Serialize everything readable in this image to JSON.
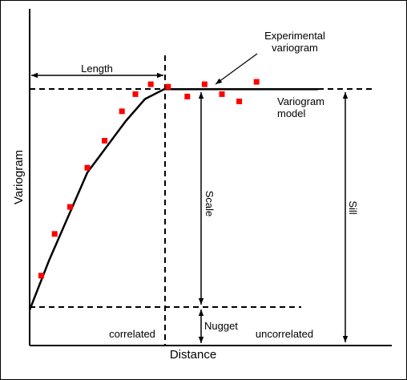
{
  "labels": {
    "length": "Length",
    "experimental": [
      "Experimental",
      "variogram"
    ],
    "model": [
      "Variogram",
      "model"
    ],
    "scale": "Scale",
    "sill": "Sill",
    "nugget": "Nugget",
    "correlated": "correlated",
    "uncorrelated": "uncorrelated",
    "xlabel": "Distance",
    "ylabel": "Variogram"
  },
  "colors": {
    "points": "#ff0000",
    "lines": "#000000"
  },
  "chart_data": {
    "type": "scatter",
    "x": [
      0.6,
      1.3,
      2.1,
      3.0,
      3.9,
      4.8,
      5.5,
      6.3,
      7.2,
      8.2,
      9.1,
      10.0,
      10.9,
      11.8
    ],
    "y": [
      0.2,
      0.37,
      0.48,
      0.64,
      0.75,
      0.87,
      0.94,
      0.98,
      0.97,
      0.93,
      0.98,
      0.94,
      0.91,
      0.99
    ],
    "model": [
      [
        0,
        0.06
      ],
      [
        1,
        0.26
      ],
      [
        3,
        0.62
      ],
      [
        5,
        0.83
      ],
      [
        6,
        0.92
      ],
      [
        7,
        0.96
      ],
      [
        15,
        0.96
      ]
    ],
    "nugget": 0.06,
    "sill": 0.96,
    "length": 7.2
  }
}
